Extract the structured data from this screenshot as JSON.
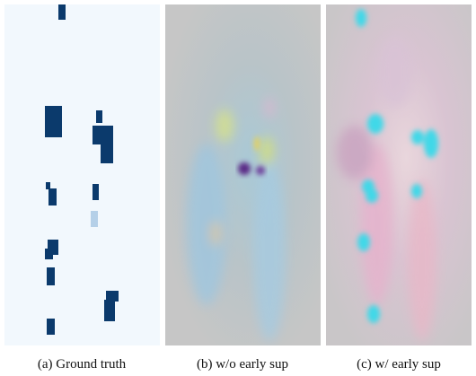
{
  "panels": [
    {
      "caption": "(a) Ground truth"
    },
    {
      "caption": "(b) w/o early sup"
    },
    {
      "caption": "(c) w/ early sup"
    }
  ]
}
